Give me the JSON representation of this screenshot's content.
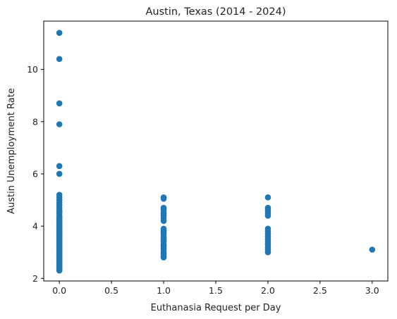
{
  "chart_data": {
    "type": "scatter",
    "title": "Austin, Texas (2014 - 2024)",
    "xlabel": "Euthanasia Request per Day",
    "ylabel": "Austin Unemployment Rate",
    "xlim": [
      -0.15,
      3.15
    ],
    "ylim": [
      1.9,
      11.85
    ],
    "xticks": [
      0.0,
      0.5,
      1.0,
      1.5,
      2.0,
      2.5,
      3.0
    ],
    "xtick_labels": [
      "0.0",
      "0.5",
      "1.0",
      "1.5",
      "2.0",
      "2.5",
      "3.0"
    ],
    "yticks": [
      2,
      4,
      6,
      8,
      10
    ],
    "ytick_labels": [
      "2",
      "4",
      "6",
      "8",
      "10"
    ],
    "grid": false,
    "marker_color": "#1f77b4",
    "series": [
      {
        "x": [
          0,
          0,
          0,
          0,
          0,
          0,
          0,
          0,
          0,
          0,
          0,
          0,
          0,
          0,
          0,
          0,
          0,
          0,
          0,
          0,
          0,
          0,
          0,
          0,
          0,
          0,
          0,
          0,
          0,
          0,
          0,
          0,
          0,
          0,
          0,
          0,
          0,
          0,
          0,
          0,
          0,
          0,
          0,
          0,
          0,
          0,
          0,
          0,
          0,
          0,
          0,
          0,
          0,
          0,
          0,
          0,
          0,
          0,
          0,
          0,
          0,
          0,
          0,
          0,
          0,
          0,
          0,
          0,
          0,
          0,
          0,
          0,
          0,
          0,
          0,
          0,
          1,
          1,
          1,
          1,
          1,
          1,
          1,
          1,
          1,
          1,
          1,
          1,
          1,
          1,
          1,
          1,
          1,
          1,
          1,
          1,
          1,
          1,
          1,
          1,
          1,
          1,
          1,
          1,
          1,
          1,
          2,
          2,
          2,
          2,
          2,
          2,
          2,
          2,
          2,
          2,
          2,
          2,
          2,
          2,
          2,
          3
        ],
        "y": [
          11.4,
          10.4,
          8.7,
          7.9,
          6.3,
          6.0,
          5.2,
          5.1,
          5.0,
          4.9,
          4.8,
          4.7,
          4.6,
          4.5,
          4.4,
          4.3,
          4.2,
          4.1,
          4.0,
          3.9,
          3.85,
          3.8,
          3.75,
          3.7,
          3.65,
          3.6,
          3.55,
          3.5,
          3.45,
          3.4,
          3.35,
          3.3,
          3.25,
          3.2,
          3.15,
          3.1,
          3.05,
          3.0,
          2.95,
          2.9,
          2.85,
          2.8,
          2.75,
          2.7,
          2.65,
          2.6,
          2.55,
          2.5,
          2.45,
          2.4,
          2.35,
          2.3,
          4.15,
          4.05,
          3.95,
          3.88,
          3.78,
          3.68,
          3.58,
          3.48,
          3.38,
          3.28,
          3.18,
          3.08,
          2.98,
          2.88,
          2.78,
          2.68,
          2.58,
          2.48,
          2.38,
          4.55,
          4.35,
          4.25,
          3.92,
          3.72,
          5.1,
          5.05,
          4.7,
          4.6,
          4.5,
          4.4,
          4.3,
          4.2,
          3.9,
          3.8,
          3.7,
          3.6,
          3.5,
          3.4,
          3.3,
          3.2,
          3.1,
          3.0,
          2.9,
          2.8,
          4.65,
          4.45,
          3.85,
          3.75,
          3.55,
          3.45,
          3.25,
          3.15,
          2.95,
          2.85,
          5.1,
          4.7,
          4.5,
          4.4,
          3.9,
          3.8,
          3.7,
          3.6,
          3.4,
          3.3,
          3.2,
          3.1,
          3.0,
          4.6,
          3.5,
          3.1
        ]
      }
    ]
  }
}
